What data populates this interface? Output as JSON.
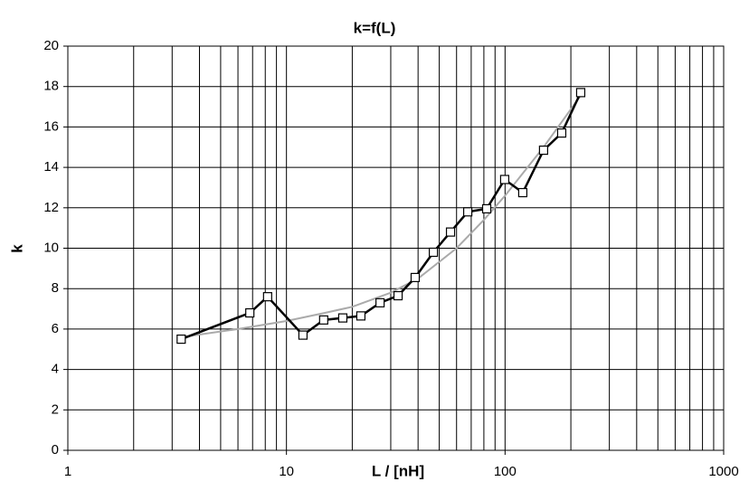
{
  "chart_data": {
    "type": "line",
    "title": "k=f(L)",
    "x_label": "L / [nH]",
    "y_label": "k",
    "x_scale": "log",
    "grid": true,
    "x_minor_grid": true,
    "xlim": [
      1,
      1000
    ],
    "xticks": [
      1,
      10,
      100,
      1000
    ],
    "ylim": [
      0,
      20
    ],
    "yticks": [
      0,
      2,
      4,
      6,
      8,
      10,
      12,
      14,
      16,
      18,
      20
    ],
    "series": [
      {
        "color": "#000000",
        "markers": true,
        "x": [
          3.3,
          6.8,
          8.2,
          11.9,
          14.8,
          18.1,
          21.9,
          26.8,
          32.4,
          38.8,
          47,
          56.3,
          67.5,
          82.4,
          99.6,
          120.5,
          150,
          181.6,
          221.8
        ],
        "values": [
          5.5,
          6.8,
          7.6,
          5.7,
          6.45,
          6.55,
          6.65,
          7.3,
          7.65,
          8.55,
          9.8,
          10.8,
          11.8,
          11.95,
          13.4,
          12.75,
          14.85,
          15.7,
          17.7
        ]
      },
      {
        "color": "#aaaaaa",
        "markers": false,
        "x": [
          3.3,
          6,
          10,
          15,
          20,
          30,
          40,
          60,
          80,
          100,
          150,
          220
        ],
        "values": [
          5.6,
          6.0,
          6.4,
          6.8,
          7.1,
          7.8,
          8.5,
          10.0,
          11.4,
          12.6,
          15.0,
          17.5
        ]
      }
    ]
  }
}
